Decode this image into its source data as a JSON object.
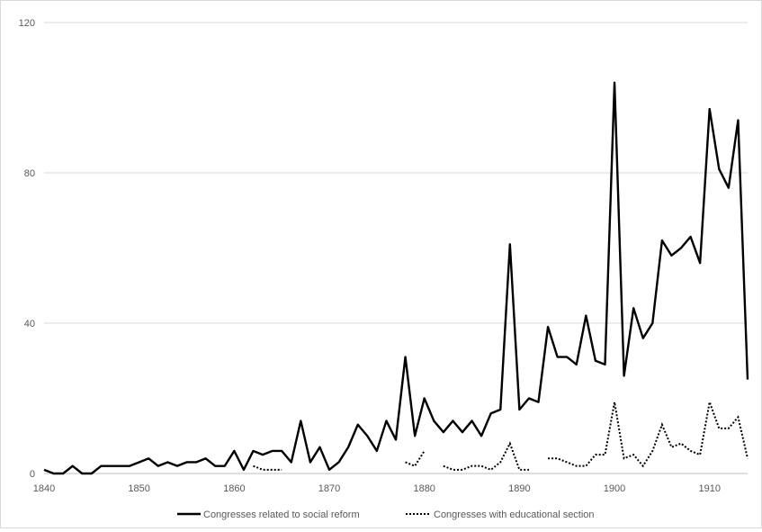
{
  "chart_data": {
    "type": "line",
    "title": "",
    "xlabel": "",
    "ylabel": "",
    "xlim": [
      1840,
      1914
    ],
    "ylim": [
      0,
      120
    ],
    "x_ticks": [
      1840,
      1850,
      1860,
      1870,
      1880,
      1890,
      1900,
      1910
    ],
    "y_ticks": [
      0,
      40,
      80,
      120
    ],
    "grid": "horizontal",
    "legend_position": "bottom",
    "colors": {
      "series": "#000000",
      "grid": "#d9d9d9",
      "axis": "#bfbfbf",
      "text": "#595959"
    },
    "series": [
      {
        "name": "Congresses related to social reform",
        "style": "solid",
        "points": [
          [
            1840,
            1
          ],
          [
            1841,
            0
          ],
          [
            1842,
            0
          ],
          [
            1843,
            2
          ],
          [
            1844,
            0
          ],
          [
            1845,
            0
          ],
          [
            1846,
            2
          ],
          [
            1847,
            2
          ],
          [
            1848,
            2
          ],
          [
            1849,
            2
          ],
          [
            1850,
            3
          ],
          [
            1851,
            4
          ],
          [
            1852,
            2
          ],
          [
            1853,
            3
          ],
          [
            1854,
            2
          ],
          [
            1855,
            3
          ],
          [
            1856,
            3
          ],
          [
            1857,
            4
          ],
          [
            1858,
            2
          ],
          [
            1859,
            2
          ],
          [
            1860,
            6
          ],
          [
            1861,
            1
          ],
          [
            1862,
            6
          ],
          [
            1863,
            5
          ],
          [
            1864,
            6
          ],
          [
            1865,
            6
          ],
          [
            1866,
            3
          ],
          [
            1867,
            14
          ],
          [
            1868,
            3
          ],
          [
            1869,
            7
          ],
          [
            1870,
            1
          ],
          [
            1871,
            3
          ],
          [
            1872,
            7
          ],
          [
            1873,
            13
          ],
          [
            1874,
            10
          ],
          [
            1875,
            6
          ],
          [
            1876,
            14
          ],
          [
            1877,
            9
          ],
          [
            1878,
            31
          ],
          [
            1879,
            10
          ],
          [
            1880,
            20
          ],
          [
            1881,
            14
          ],
          [
            1882,
            11
          ],
          [
            1883,
            14
          ],
          [
            1884,
            11
          ],
          [
            1885,
            14
          ],
          [
            1886,
            10
          ],
          [
            1887,
            16
          ],
          [
            1888,
            17
          ],
          [
            1889,
            61
          ],
          [
            1890,
            17
          ],
          [
            1891,
            20
          ],
          [
            1892,
            19
          ],
          [
            1893,
            39
          ],
          [
            1894,
            31
          ],
          [
            1895,
            31
          ],
          [
            1896,
            29
          ],
          [
            1897,
            42
          ],
          [
            1898,
            30
          ],
          [
            1899,
            29
          ],
          [
            1900,
            104
          ],
          [
            1901,
            26
          ],
          [
            1902,
            44
          ],
          [
            1903,
            36
          ],
          [
            1904,
            40
          ],
          [
            1905,
            62
          ],
          [
            1906,
            58
          ],
          [
            1907,
            60
          ],
          [
            1908,
            63
          ],
          [
            1909,
            56
          ],
          [
            1910,
            97
          ],
          [
            1911,
            81
          ],
          [
            1912,
            76
          ],
          [
            1913,
            94
          ],
          [
            1914,
            25
          ]
        ]
      },
      {
        "name": "Congresses with educational section",
        "style": "dotted",
        "segments": [
          [
            [
              1862,
              2
            ],
            [
              1863,
              1
            ],
            [
              1864,
              1
            ],
            [
              1865,
              1
            ]
          ],
          [
            [
              1878,
              3
            ],
            [
              1879,
              2
            ],
            [
              1880,
              6
            ]
          ],
          [
            [
              1882,
              2
            ],
            [
              1883,
              1
            ],
            [
              1884,
              1
            ],
            [
              1885,
              2
            ],
            [
              1886,
              2
            ],
            [
              1887,
              1
            ],
            [
              1888,
              3
            ],
            [
              1889,
              8
            ],
            [
              1890,
              1
            ],
            [
              1891,
              1
            ]
          ],
          [
            [
              1893,
              4
            ],
            [
              1894,
              4
            ],
            [
              1895,
              3
            ],
            [
              1896,
              2
            ],
            [
              1897,
              2
            ],
            [
              1898,
              5
            ],
            [
              1899,
              5
            ],
            [
              1900,
              19
            ],
            [
              1901,
              4
            ],
            [
              1902,
              5
            ],
            [
              1903,
              2
            ],
            [
              1904,
              6
            ],
            [
              1905,
              13
            ],
            [
              1906,
              7
            ],
            [
              1907,
              8
            ],
            [
              1908,
              6
            ],
            [
              1909,
              5
            ],
            [
              1910,
              19
            ],
            [
              1911,
              12
            ],
            [
              1912,
              12
            ],
            [
              1913,
              15
            ],
            [
              1914,
              4
            ]
          ]
        ]
      }
    ]
  }
}
